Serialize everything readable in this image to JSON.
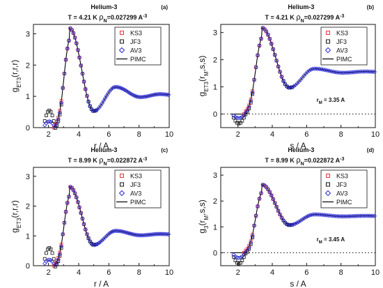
{
  "figure": {
    "colors": {
      "KS3": "#e8323c",
      "JF3": "#111111",
      "AV3": "#2a2ad6",
      "PIMC": "#000000"
    }
  },
  "chart_data": [
    {
      "type": "scatter",
      "panel_label": "(a)",
      "title": "Helium-3",
      "subtitle_parts": [
        "T = 4.21 K",
        "ρ",
        "N",
        "=0.027299 A",
        "-3"
      ],
      "xlabel": "r / A",
      "ylabel_parts": [
        "g",
        "ET3",
        "(r,r,r)"
      ],
      "xlim": [
        1,
        10
      ],
      "ylim": [
        0,
        3.3
      ],
      "xticks": [
        2,
        4,
        6,
        8,
        10
      ],
      "yticks": [
        0,
        1,
        2,
        3
      ],
      "legend_placement": "right",
      "annotation_parts": [],
      "dotted_zero_line": false,
      "curve_params": {
        "peak": 3.18,
        "hump": 1.3,
        "valley": 0.53,
        "tail": 1.04,
        "onset": 2.5,
        "pre": [
          0.2,
          0.55,
          0.26
        ]
      },
      "series": [
        {
          "name": "KS3",
          "marker": "square",
          "color": "#e8323c"
        },
        {
          "name": "JF3",
          "marker": "square",
          "color": "#111111"
        },
        {
          "name": "AV3",
          "marker": "diamond",
          "color": "#2a2ad6"
        },
        {
          "name": "PIMC",
          "marker": "line",
          "color": "#000000"
        }
      ]
    },
    {
      "type": "scatter",
      "panel_label": "(b)",
      "title": "Helium-3",
      "subtitle_parts": [
        "T = 4.21 K",
        "ρ",
        "N",
        "=0.027299 A",
        "-3"
      ],
      "xlabel": "s / A",
      "ylabel_parts": [
        "g",
        "ET3",
        "(r",
        "M",
        ",s,s)"
      ],
      "xlim": [
        1,
        10
      ],
      "ylim": [
        -0.5,
        3.3
      ],
      "xticks": [
        2,
        4,
        6,
        8,
        10
      ],
      "yticks": [
        0,
        1,
        2,
        3
      ],
      "legend_placement": "right",
      "annotation_parts": [
        "r",
        "M",
        " = 3.35 A"
      ],
      "dotted_zero_line": true,
      "curve_params": {
        "peak": 3.17,
        "hump": 1.67,
        "valley": 0.97,
        "tail": 1.55,
        "onset": 2.5,
        "pre": [
          -0.05,
          -0.15,
          -0.35
        ]
      },
      "series": [
        {
          "name": "KS3",
          "marker": "square",
          "color": "#e8323c"
        },
        {
          "name": "JF3",
          "marker": "square",
          "color": "#111111"
        },
        {
          "name": "AV3",
          "marker": "diamond",
          "color": "#2a2ad6"
        },
        {
          "name": "PIMC",
          "marker": "line",
          "color": "#000000"
        }
      ]
    },
    {
      "type": "scatter",
      "panel_label": "(c)",
      "title": "Helium-3",
      "subtitle_parts": [
        "T = 8.99 K",
        "ρ",
        "N",
        "=0.022872 A",
        "-3"
      ],
      "xlabel": "r / A",
      "ylabel_parts": [
        "g",
        "ET3",
        "(r,r,r)"
      ],
      "xlim": [
        1,
        10
      ],
      "ylim": [
        0,
        3.3
      ],
      "xticks": [
        2,
        4,
        6,
        8,
        10
      ],
      "yticks": [
        0,
        1,
        2,
        3
      ],
      "legend_placement": "right",
      "annotation_parts": [],
      "dotted_zero_line": false,
      "curve_params": {
        "peak": 2.65,
        "hump": 1.17,
        "valley": 0.7,
        "tail": 1.05,
        "onset": 2.5,
        "pre": [
          0.2,
          0.6,
          0.28
        ]
      },
      "series": [
        {
          "name": "KS3",
          "marker": "square",
          "color": "#e8323c"
        },
        {
          "name": "JF3",
          "marker": "square",
          "color": "#111111"
        },
        {
          "name": "AV3",
          "marker": "diamond",
          "color": "#2a2ad6"
        },
        {
          "name": "PIMC",
          "marker": "line",
          "color": "#000000"
        }
      ]
    },
    {
      "type": "scatter",
      "panel_label": "(d)",
      "title": "Helium-3",
      "subtitle_parts": [
        "T = 8.99 K",
        "ρ",
        "N",
        "=0.022872 A",
        "-3"
      ],
      "xlabel": "s / A",
      "ylabel_parts": [
        "g",
        "3",
        "(r",
        "M",
        ",s,s)"
      ],
      "xlim": [
        1,
        10
      ],
      "ylim": [
        -0.5,
        3.3
      ],
      "xticks": [
        2,
        4,
        6,
        8,
        10
      ],
      "yticks": [
        0,
        1,
        2,
        3
      ],
      "legend_placement": "right",
      "annotation_parts": [
        "r",
        "M",
        " = 3.45 A"
      ],
      "dotted_zero_line": true,
      "curve_params": {
        "peak": 2.63,
        "hump": 1.48,
        "valley": 1.07,
        "tail": 1.42,
        "onset": 2.5,
        "pre": [
          -0.05,
          -0.2,
          -0.42
        ]
      },
      "series": [
        {
          "name": "KS3",
          "marker": "square",
          "color": "#e8323c"
        },
        {
          "name": "JF3",
          "marker": "square",
          "color": "#111111"
        },
        {
          "name": "AV3",
          "marker": "diamond",
          "color": "#2a2ad6"
        },
        {
          "name": "PIMC",
          "marker": "line",
          "color": "#000000"
        }
      ]
    }
  ]
}
